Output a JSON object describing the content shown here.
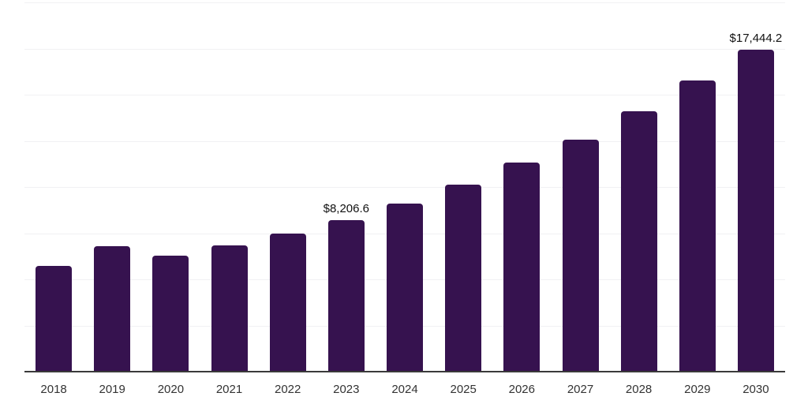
{
  "chart_data": {
    "type": "bar",
    "categories": [
      "2018",
      "2019",
      "2020",
      "2021",
      "2022",
      "2023",
      "2024",
      "2025",
      "2026",
      "2027",
      "2028",
      "2029",
      "2030"
    ],
    "values": [
      5710,
      6780,
      6270,
      6820,
      7500,
      8206.6,
      9120,
      10150,
      11320,
      12580,
      14110,
      15770,
      17444.2
    ],
    "value_labels": {
      "2023": "$8,206.6",
      "2030": "$17,444.2"
    },
    "title": "",
    "xlabel": "",
    "ylabel": "",
    "ylim": [
      0,
      20000
    ],
    "gridline_step": 2500,
    "grid": true,
    "legend": "none",
    "colors": {
      "bar": "#36124F",
      "axis": "#3a3a3a",
      "grid": "#f1f1f3",
      "tick_text": "#333333",
      "value_label_text": "#111111",
      "background": "#ffffff"
    }
  }
}
